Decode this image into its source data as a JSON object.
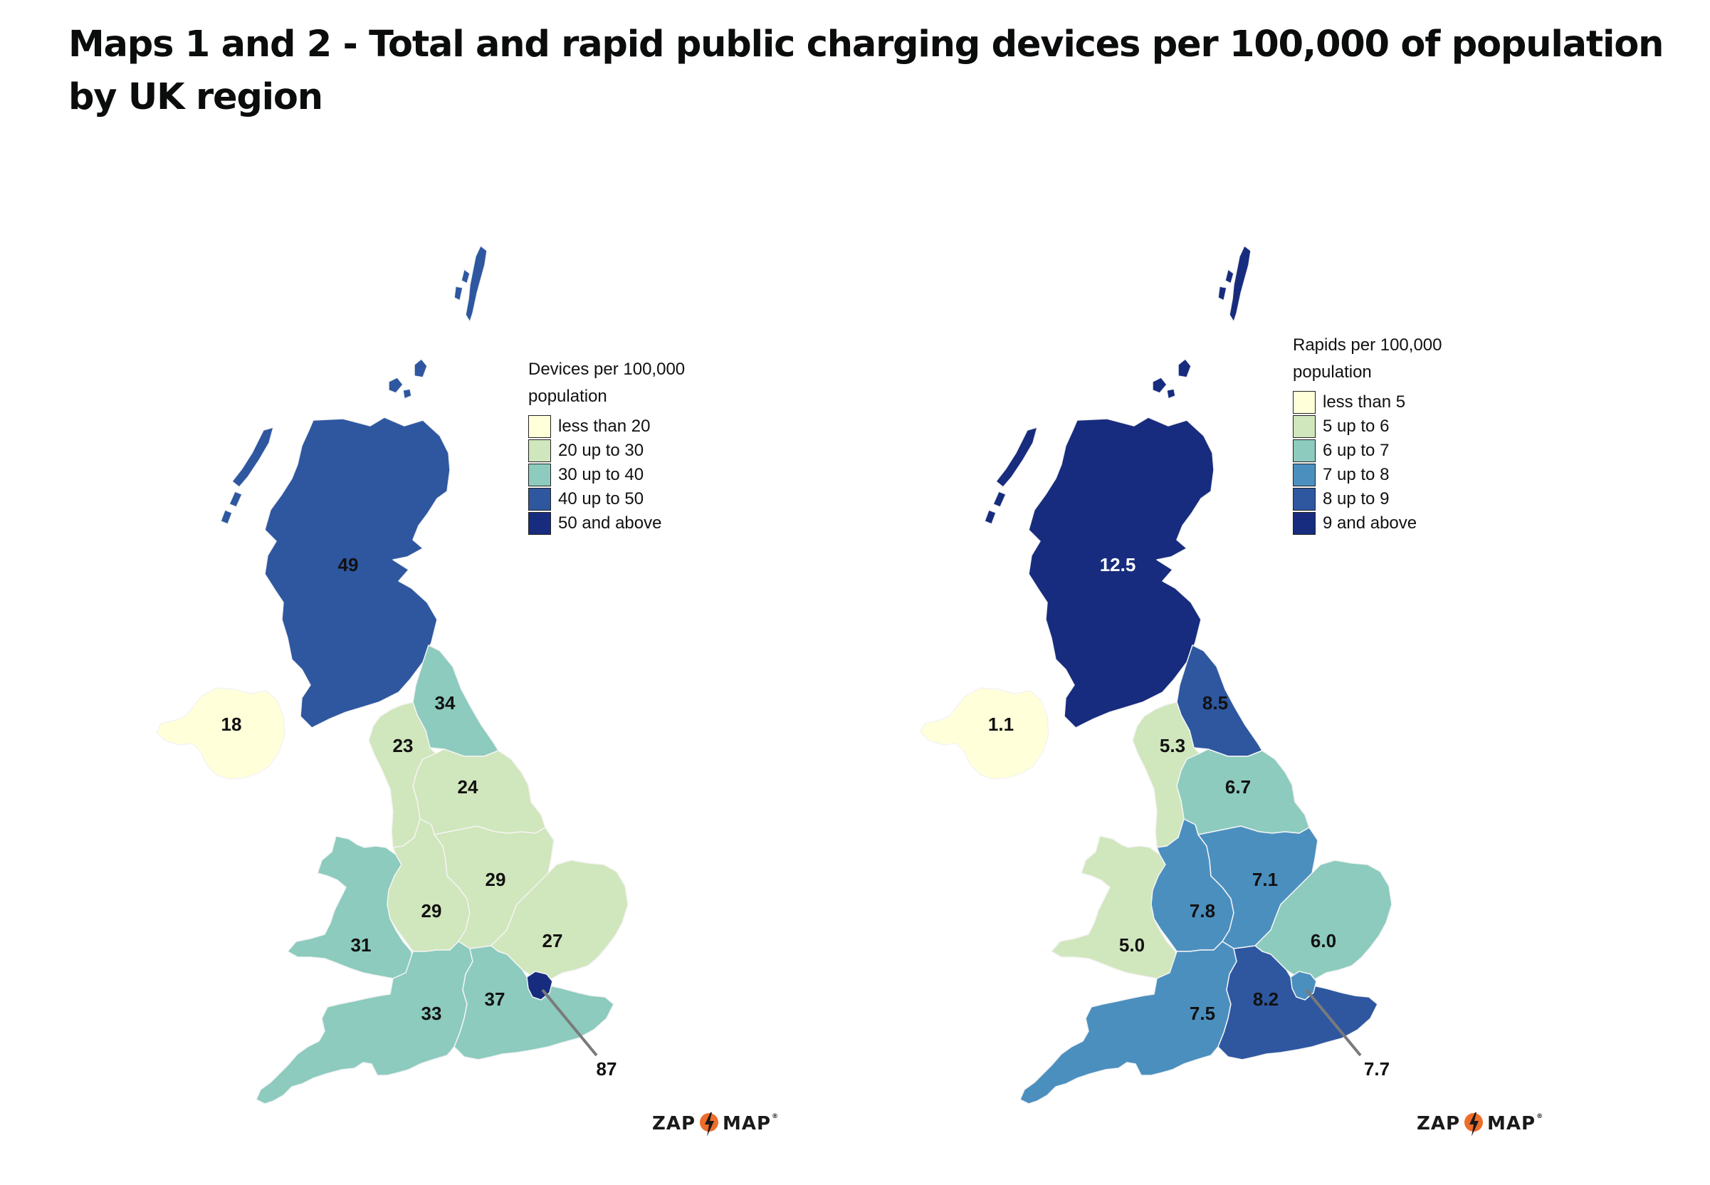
{
  "title": "Maps 1 and 2 - Total and rapid public charging devices per 100,000 of population by UK region",
  "colors": {
    "bin1": "#ffffd9",
    "bin2": "#d0e6bc",
    "bin3": "#8ccbbe",
    "bin4": "#4b8fbf",
    "bin5": "#2e57a0",
    "bin6": "#172c7e",
    "callout": "#7a7a7a",
    "logo_bolt": "#ee6d2b"
  },
  "map_total": {
    "legend_title": "Devices per 100,000 population",
    "legend": [
      {
        "label": "less than 20",
        "color": "#ffffd9"
      },
      {
        "label": "20 up to 30",
        "color": "#d0e6bc"
      },
      {
        "label": "30 up to 40",
        "color": "#8ccbbe"
      },
      {
        "label": "40 up to 50",
        "color": "#2e57a0"
      },
      {
        "label": "50 and above",
        "color": "#172c7e"
      }
    ],
    "regions": {
      "scotland": {
        "label": "49",
        "color": "#2e57a0"
      },
      "northern_ireland": {
        "label": "18",
        "color": "#ffffd9"
      },
      "north_east": {
        "label": "34",
        "color": "#8ccbbe"
      },
      "north_west": {
        "label": "23",
        "color": "#d0e6bc"
      },
      "yorkshire": {
        "label": "24",
        "color": "#d0e6bc"
      },
      "wales": {
        "label": "31",
        "color": "#8ccbbe"
      },
      "west_midlands": {
        "label": "29",
        "color": "#d0e6bc"
      },
      "east_midlands": {
        "label": "29",
        "color": "#d0e6bc"
      },
      "east": {
        "label": "27",
        "color": "#d0e6bc"
      },
      "south_west": {
        "label": "33",
        "color": "#8ccbbe"
      },
      "south_east": {
        "label": "37",
        "color": "#8ccbbe"
      },
      "london": {
        "label": "87",
        "color": "#172c7e"
      }
    },
    "logo": {
      "left": "ZAP",
      "right": "MAP"
    }
  },
  "map_rapid": {
    "legend_title": "Rapids per 100,000 population",
    "legend": [
      {
        "label": "less than 5",
        "color": "#ffffd9"
      },
      {
        "label": "5 up to 6",
        "color": "#d0e6bc"
      },
      {
        "label": "6 up to 7",
        "color": "#8ccbbe"
      },
      {
        "label": "7 up to 8",
        "color": "#4b8fbf"
      },
      {
        "label": "8 up to 9",
        "color": "#2e57a0"
      },
      {
        "label": "9 and above",
        "color": "#172c7e"
      }
    ],
    "regions": {
      "scotland": {
        "label": "12.5",
        "color": "#172c7e"
      },
      "northern_ireland": {
        "label": "1.1",
        "color": "#ffffd9"
      },
      "north_east": {
        "label": "8.5",
        "color": "#2e57a0"
      },
      "north_west": {
        "label": "5.3",
        "color": "#d0e6bc"
      },
      "yorkshire": {
        "label": "6.7",
        "color": "#8ccbbe"
      },
      "wales": {
        "label": "5.0",
        "color": "#d0e6bc"
      },
      "west_midlands": {
        "label": "7.8",
        "color": "#4b8fbf"
      },
      "east_midlands": {
        "label": "7.1",
        "color": "#4b8fbf"
      },
      "east": {
        "label": "6.0",
        "color": "#8ccbbe"
      },
      "south_west": {
        "label": "7.5",
        "color": "#4b8fbf"
      },
      "south_east": {
        "label": "8.2",
        "color": "#2e57a0"
      },
      "london": {
        "label": "7.7",
        "color": "#4b8fbf"
      }
    },
    "logo": {
      "left": "ZAP",
      "right": "MAP"
    }
  }
}
